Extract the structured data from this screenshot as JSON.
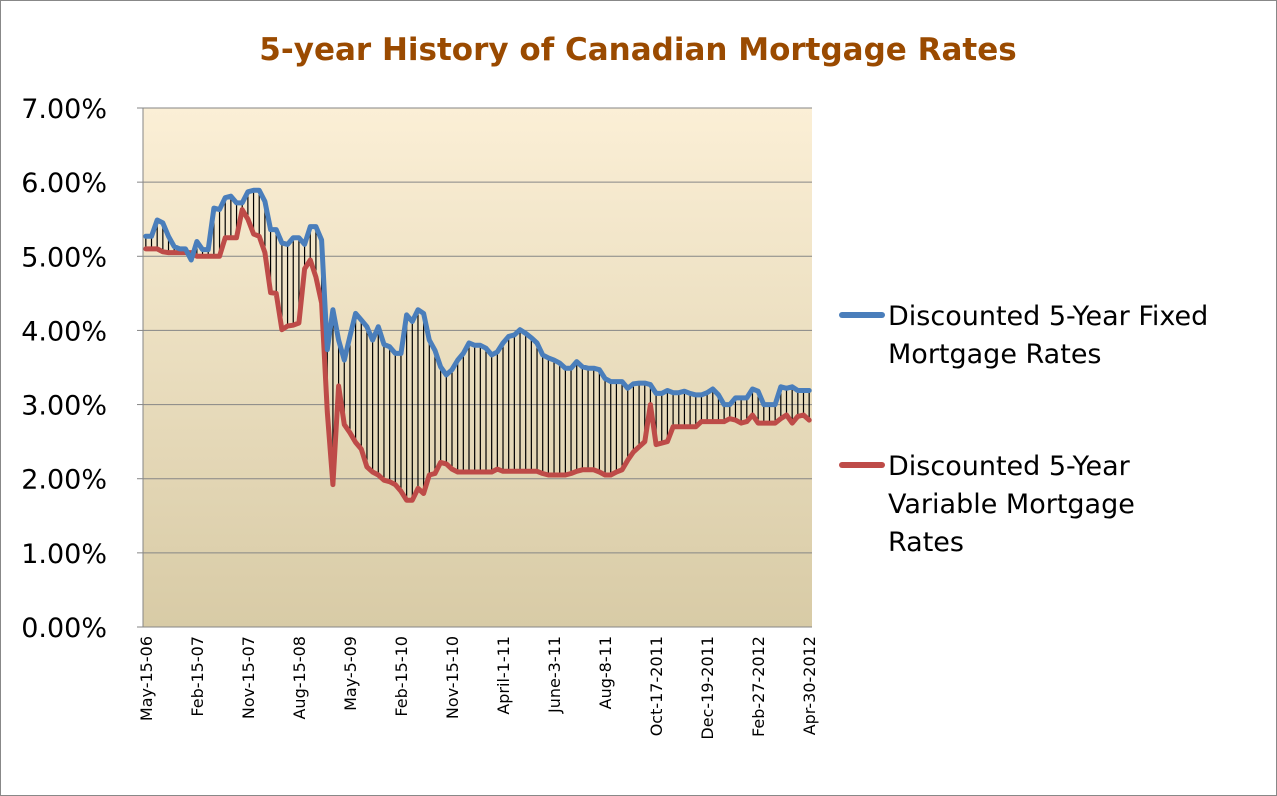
{
  "chart_data": {
    "type": "line",
    "title": "5-year History of Canadian Mortgage Rates",
    "title_color": "#9A4A00",
    "xlabel": "",
    "ylabel": "",
    "ylim": [
      0,
      7
    ],
    "y_ticks": [
      "0.00%",
      "1.00%",
      "2.00%",
      "3.00%",
      "4.00%",
      "5.00%",
      "6.00%",
      "7.00%"
    ],
    "x_tick_labels": [
      "May-15-06",
      "Feb-15-07",
      "Nov-15-07",
      "Aug-15-08",
      "May-5-09",
      "Feb-15-10",
      "Nov-15-10",
      "April-1-11",
      "June-3-11",
      "Aug-8-11",
      "Oct-17-2011",
      "Dec-19-2011",
      "Feb-27-2012",
      "Apr-30-2012"
    ],
    "grid": true,
    "drop_lines": true,
    "legend_position": "right",
    "plot_background": [
      "#FBEFD6",
      "#D8CBA6"
    ],
    "series": [
      {
        "name": "Discounted 5-Year Fixed Mortgage Rates",
        "legend_lines": [
          "Discounted 5-Year Fixed",
          "Mortgage Rates"
        ],
        "color": "#4A7EBB",
        "values": [
          5.27,
          5.27,
          5.49,
          5.45,
          5.27,
          5.13,
          5.1,
          5.1,
          4.95,
          5.2,
          5.09,
          5.09,
          5.65,
          5.63,
          5.79,
          5.81,
          5.72,
          5.72,
          5.87,
          5.89,
          5.89,
          5.74,
          5.36,
          5.36,
          5.18,
          5.16,
          5.25,
          5.25,
          5.16,
          5.4,
          5.4,
          5.22,
          3.74,
          4.28,
          3.87,
          3.6,
          3.92,
          4.23,
          4.14,
          4.05,
          3.87,
          4.05,
          3.81,
          3.78,
          3.69,
          3.69,
          4.21,
          4.12,
          4.28,
          4.23,
          3.87,
          3.73,
          3.51,
          3.4,
          3.47,
          3.6,
          3.69,
          3.83,
          3.8,
          3.8,
          3.76,
          3.67,
          3.71,
          3.83,
          3.92,
          3.94,
          4.01,
          3.96,
          3.9,
          3.83,
          3.67,
          3.63,
          3.6,
          3.56,
          3.49,
          3.49,
          3.58,
          3.51,
          3.49,
          3.49,
          3.47,
          3.35,
          3.31,
          3.31,
          3.31,
          3.22,
          3.28,
          3.29,
          3.29,
          3.27,
          3.15,
          3.15,
          3.19,
          3.16,
          3.16,
          3.18,
          3.15,
          3.13,
          3.13,
          3.16,
          3.21,
          3.13,
          3.0,
          3.0,
          3.09,
          3.09,
          3.09,
          3.21,
          3.18,
          3.0,
          3.0,
          3.0,
          3.24,
          3.22,
          3.24,
          3.19,
          3.19,
          3.19
        ]
      },
      {
        "name": "Discounted 5-Year Variable Mortgage Rates",
        "legend_lines": [
          "Discounted 5-Year",
          "Variable Mortgage",
          "Rates"
        ],
        "color": "#BE4B48",
        "values": [
          5.1,
          5.1,
          5.1,
          5.06,
          5.05,
          5.05,
          5.05,
          5.05,
          5.05,
          5.0,
          5.0,
          5.0,
          5.0,
          5.0,
          5.25,
          5.25,
          5.25,
          5.63,
          5.5,
          5.3,
          5.27,
          5.05,
          4.51,
          4.5,
          4.01,
          4.06,
          4.07,
          4.1,
          4.83,
          4.95,
          4.72,
          4.37,
          2.9,
          1.92,
          3.25,
          2.73,
          2.62,
          2.49,
          2.4,
          2.16,
          2.09,
          2.05,
          1.98,
          1.96,
          1.92,
          1.83,
          1.71,
          1.71,
          1.87,
          1.8,
          2.05,
          2.07,
          2.22,
          2.2,
          2.13,
          2.09,
          2.09,
          2.09,
          2.09,
          2.09,
          2.09,
          2.09,
          2.13,
          2.1,
          2.1,
          2.1,
          2.1,
          2.1,
          2.1,
          2.1,
          2.07,
          2.05,
          2.05,
          2.05,
          2.05,
          2.07,
          2.1,
          2.12,
          2.12,
          2.12,
          2.09,
          2.05,
          2.05,
          2.09,
          2.12,
          2.25,
          2.36,
          2.43,
          2.5,
          3.0,
          2.46,
          2.48,
          2.5,
          2.7,
          2.7,
          2.7,
          2.7,
          2.7,
          2.77,
          2.77,
          2.77,
          2.77,
          2.77,
          2.81,
          2.79,
          2.75,
          2.77,
          2.86,
          2.75,
          2.75,
          2.75,
          2.75,
          2.81,
          2.86,
          2.75,
          2.84,
          2.86,
          2.79
        ]
      }
    ]
  }
}
